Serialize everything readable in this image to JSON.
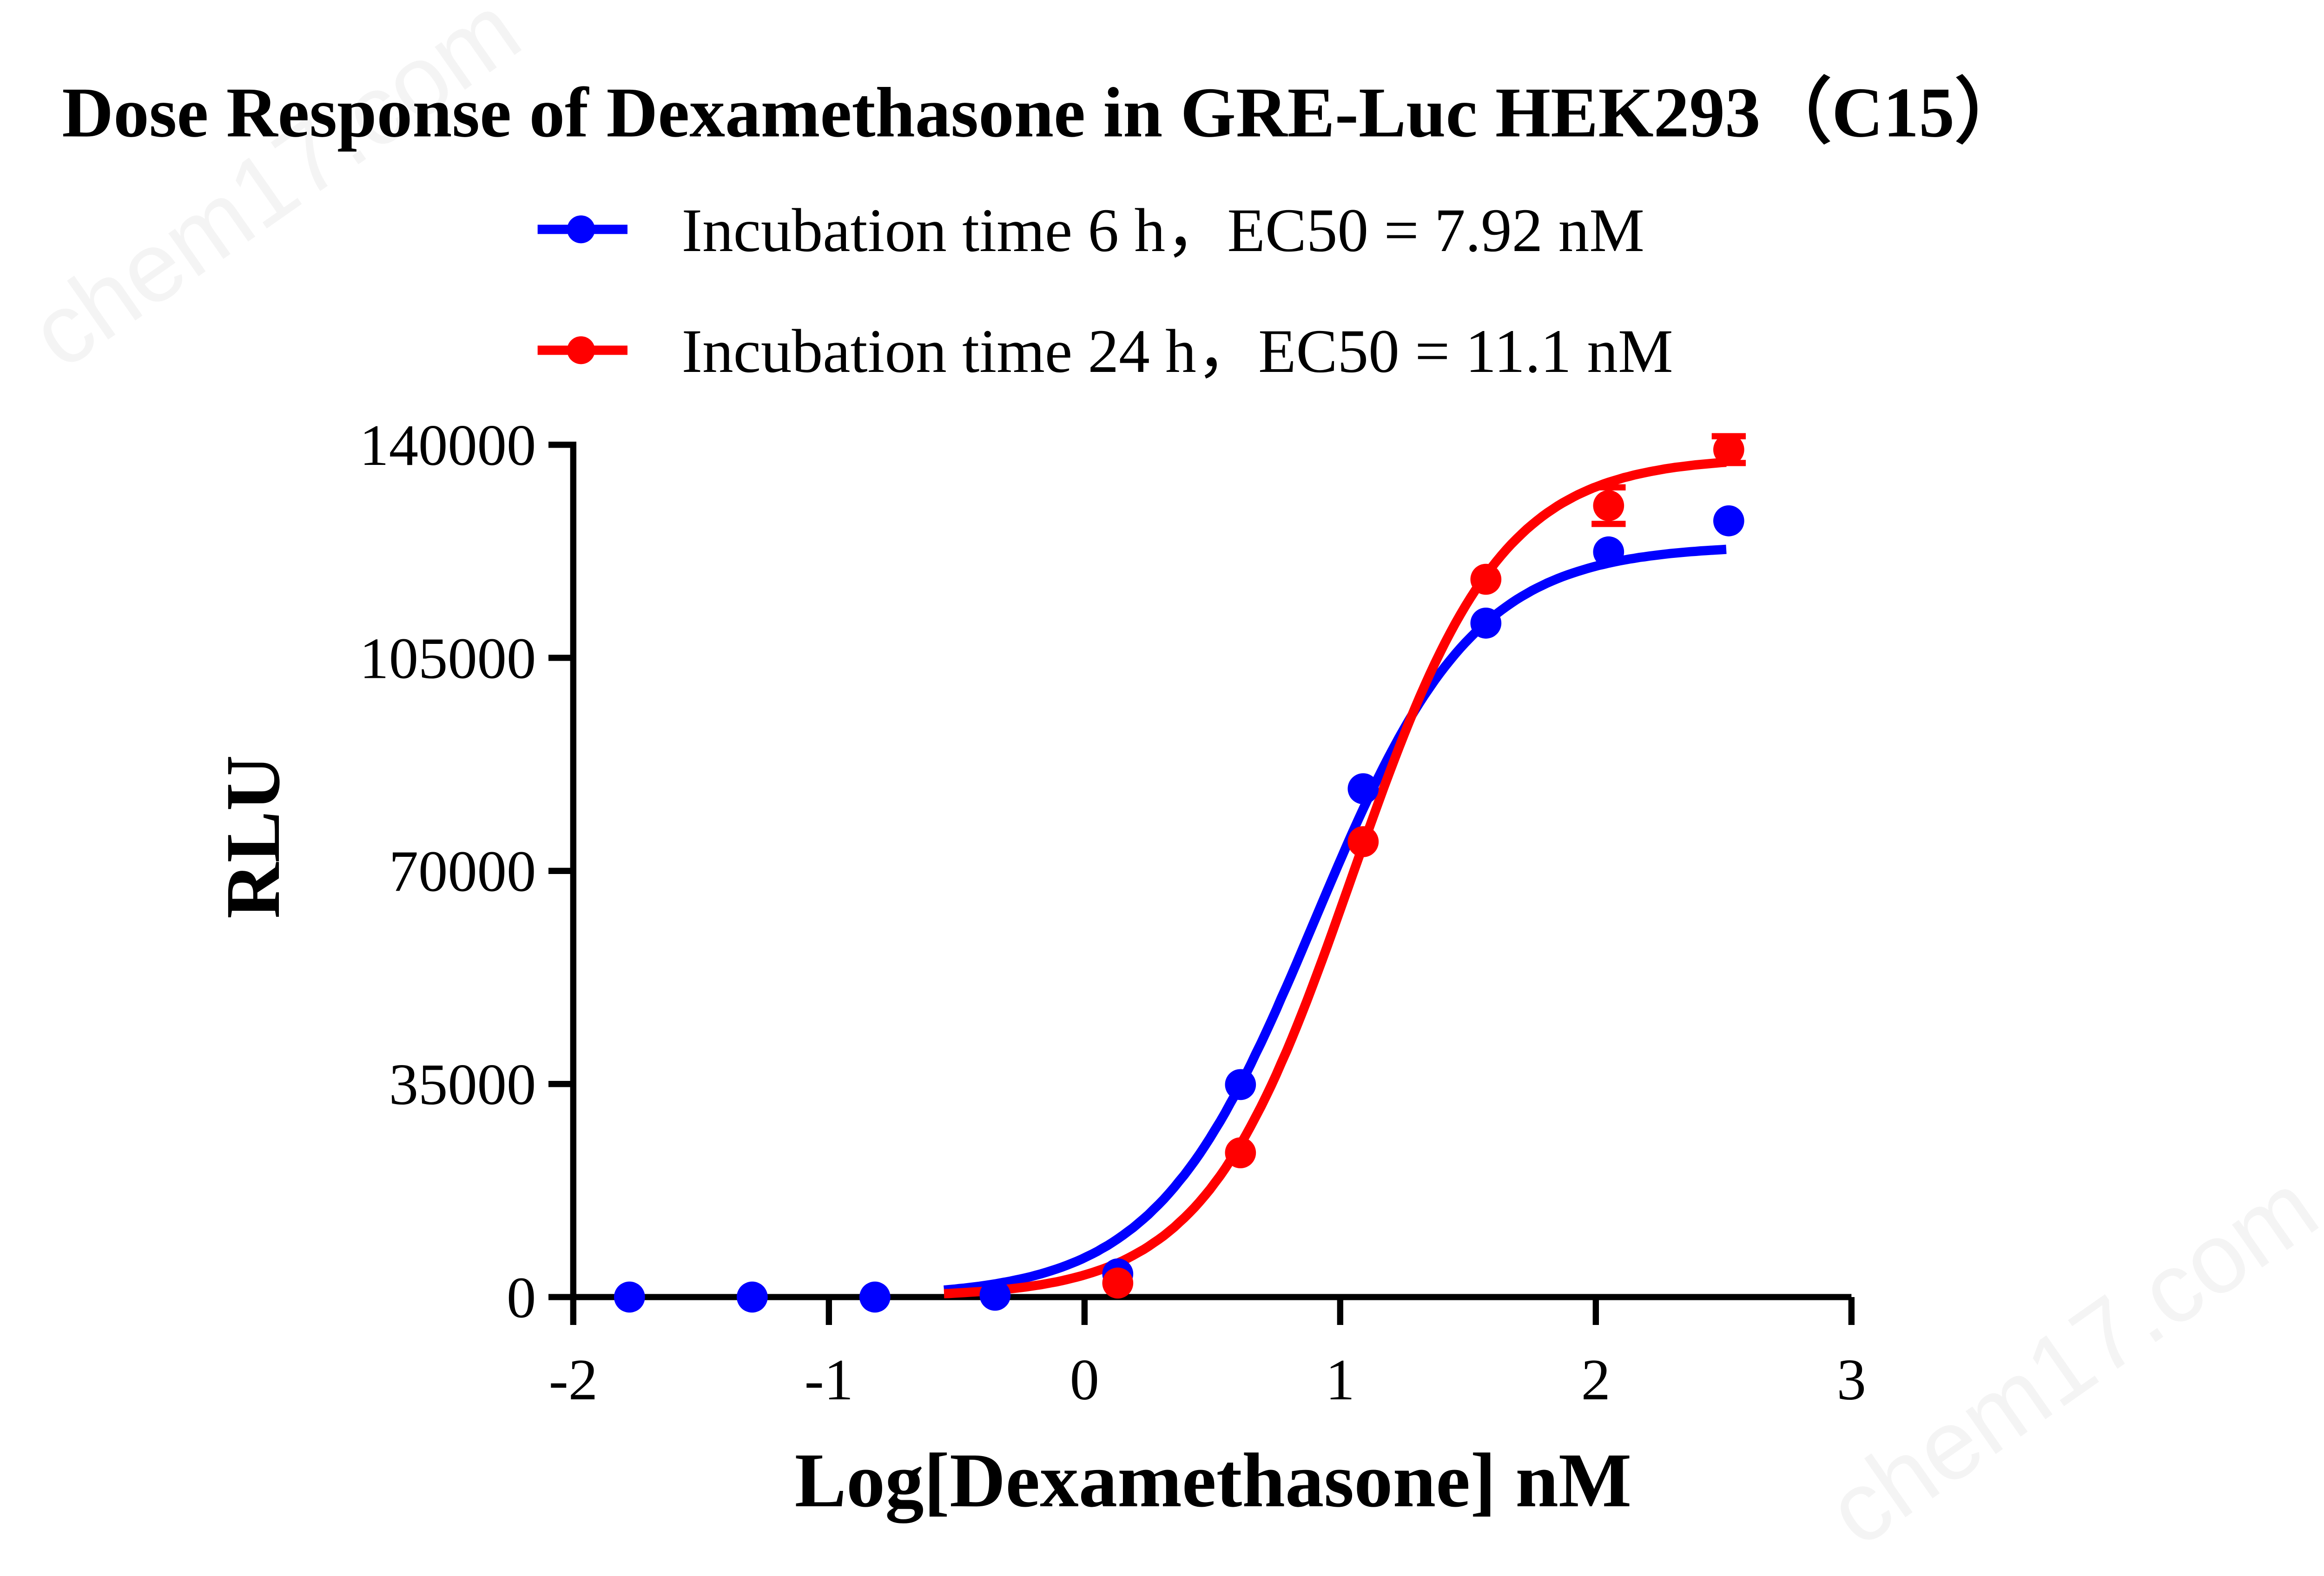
{
  "chart_data": {
    "type": "scatter",
    "title": "Dose Response of Dexamethasone in GRE-Luc HEK293（C15）",
    "xlabel": "Log[Dexamethasone] nM",
    "ylabel": "RLU",
    "xlim": [
      -2,
      3
    ],
    "ylim": [
      0,
      140000
    ],
    "xticks": [
      "-2",
      "-1",
      "0",
      "1",
      "2",
      "3"
    ],
    "yticks": [
      "0",
      "35000",
      "70000",
      "105000",
      "140000"
    ],
    "grid": false,
    "legend_position": "top",
    "series": [
      {
        "name": "Incubation time 6 h，EC50 = 7.92 nM",
        "color": "#0000ff",
        "ec50_nM": 7.92,
        "x": [
          -1.78,
          -1.3,
          -0.82,
          -0.35,
          0.13,
          0.61,
          1.09,
          1.57,
          2.05,
          2.52
        ],
        "y": [
          0,
          0,
          0,
          300,
          3800,
          34900,
          83500,
          110700,
          122400,
          127500
        ],
        "error": [
          0,
          0,
          0,
          0,
          0,
          0,
          0,
          0,
          0,
          0
        ]
      },
      {
        "name": "Incubation time 24 h，EC50 = 11.1 nM",
        "color": "#ff0000",
        "ec50_nM": 11.1,
        "x": [
          0.13,
          0.61,
          1.09,
          1.57,
          2.05,
          2.52
        ],
        "y": [
          2300,
          23700,
          74800,
          117900,
          130000,
          139200
        ],
        "error": [
          0,
          0,
          0,
          0,
          3000,
          2200
        ]
      }
    ]
  },
  "watermark": "chem17.com"
}
